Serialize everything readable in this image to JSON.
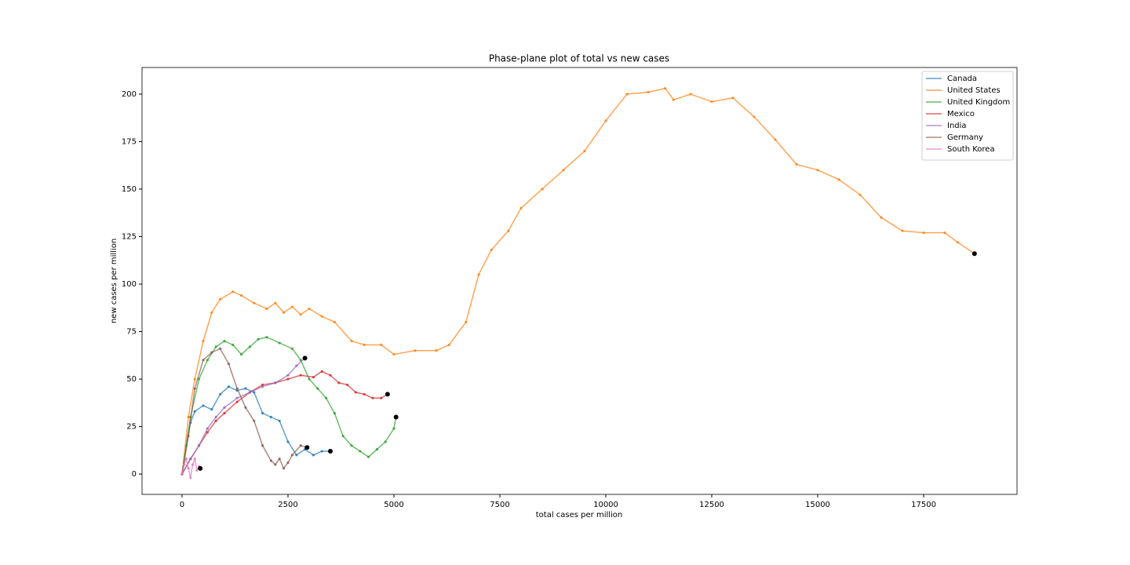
{
  "chart_data": {
    "type": "line",
    "title": "Phase-plane plot of total vs new cases",
    "xlabel": "total cases per million",
    "ylabel": "new cases per million",
    "xlim": [
      -944,
      19703
    ],
    "ylim": [
      -10.7,
      214
    ],
    "xticks": [
      0,
      2500,
      5000,
      7500,
      10000,
      12500,
      15000,
      17500
    ],
    "yticks": [
      0,
      25,
      50,
      75,
      100,
      125,
      150,
      175,
      200
    ],
    "grid": false,
    "legend": "upper right",
    "series": [
      {
        "name": "Canada",
        "color": "#1f77b4",
        "x": [
          0,
          100,
          200,
          300,
          500,
          700,
          900,
          1100,
          1300,
          1500,
          1700,
          1900,
          2100,
          2300,
          2500,
          2700,
          2900,
          3100,
          3300,
          3500
        ],
        "values": [
          0,
          15,
          27,
          33,
          36,
          34,
          42,
          46,
          44,
          45,
          43,
          32,
          30,
          28,
          17,
          10,
          13,
          10,
          12,
          12
        ]
      },
      {
        "name": "United States",
        "color": "#ff7f0e",
        "x": [
          0,
          150,
          300,
          500,
          700,
          900,
          1200,
          1400,
          1700,
          2000,
          2200,
          2400,
          2600,
          2800,
          3000,
          3300,
          3600,
          4000,
          4300,
          4700,
          5000,
          5500,
          6000,
          6300,
          6700,
          7000,
          7300,
          7700,
          8000,
          8500,
          9000,
          9500,
          10000,
          10500,
          11000,
          11400,
          11600,
          12000,
          12500,
          13000,
          13500,
          14000,
          14500,
          15000,
          15500,
          16000,
          16500,
          17000,
          17500,
          18000,
          18300,
          18700
        ],
        "values": [
          0,
          30,
          50,
          70,
          85,
          92,
          96,
          94,
          90,
          87,
          90,
          85,
          88,
          84,
          87,
          83,
          80,
          70,
          68,
          68,
          63,
          65,
          65,
          68,
          80,
          105,
          118,
          128,
          140,
          150,
          160,
          170,
          186,
          200,
          201,
          203,
          197,
          200,
          196,
          198,
          188,
          176,
          163,
          160,
          155,
          147,
          135,
          128,
          127,
          127,
          122,
          116
        ]
      },
      {
        "name": "United Kingdom",
        "color": "#2ca02c",
        "x": [
          0,
          200,
          400,
          600,
          800,
          1000,
          1200,
          1400,
          1600,
          1800,
          2000,
          2300,
          2600,
          2800,
          3000,
          3200,
          3400,
          3600,
          3800,
          4000,
          4200,
          4400,
          4600,
          4800,
          5000,
          5050
        ],
        "values": [
          0,
          30,
          50,
          60,
          67,
          70,
          68,
          63,
          67,
          71,
          72,
          69,
          66,
          60,
          50,
          45,
          40,
          32,
          20,
          15,
          12,
          9,
          13,
          17,
          24,
          30
        ]
      },
      {
        "name": "Mexico",
        "color": "#d62728",
        "x": [
          0,
          200,
          400,
          600,
          800,
          1000,
          1300,
          1600,
          1900,
          2200,
          2500,
          2800,
          3100,
          3300,
          3500,
          3700,
          3900,
          4100,
          4300,
          4500,
          4700,
          4850
        ],
        "values": [
          0,
          8,
          15,
          22,
          28,
          32,
          38,
          43,
          47,
          48,
          50,
          52,
          51,
          54,
          52,
          48,
          47,
          43,
          42,
          40,
          40,
          42
        ]
      },
      {
        "name": "India",
        "color": "#9467bd",
        "x": [
          0,
          200,
          400,
          600,
          800,
          1000,
          1300,
          1600,
          1900,
          2200,
          2500,
          2700,
          2900
        ],
        "values": [
          0,
          8,
          15,
          24,
          30,
          35,
          40,
          43,
          46,
          48,
          52,
          57,
          61
        ]
      },
      {
        "name": "Germany",
        "color": "#8c564b",
        "x": [
          0,
          150,
          300,
          500,
          700,
          900,
          1100,
          1300,
          1500,
          1700,
          1900,
          2100,
          2200,
          2300,
          2400,
          2500,
          2600,
          2800,
          2950
        ],
        "values": [
          0,
          20,
          45,
          60,
          64,
          66,
          58,
          45,
          35,
          28,
          15,
          7,
          5,
          8,
          3,
          6,
          10,
          15,
          14
        ]
      },
      {
        "name": "South Korea",
        "color": "#e377c2",
        "x": [
          0,
          50,
          100,
          150,
          200,
          250,
          300,
          350,
          400,
          430
        ],
        "values": [
          0,
          5,
          8,
          3,
          -2,
          5,
          8,
          2,
          4,
          3
        ]
      }
    ]
  }
}
